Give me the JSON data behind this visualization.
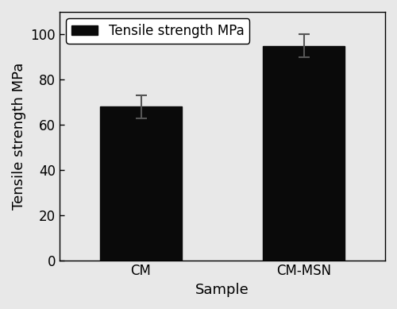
{
  "categories": [
    "CM",
    "CM-MSN"
  ],
  "values": [
    68,
    95
  ],
  "errors": [
    5,
    5
  ],
  "bar_color": "#0a0a0a",
  "bar_width": 0.5,
  "xlabel": "Sample",
  "ylabel": "Tensile strength MPa",
  "ylim": [
    0,
    110
  ],
  "yticks": [
    0,
    20,
    40,
    60,
    80,
    100
  ],
  "legend_label": "Tensile strength MPa",
  "legend_color": "#0a0a0a",
  "background_color": "#e8e8e8",
  "title": "",
  "xlabel_fontsize": 13,
  "ylabel_fontsize": 13,
  "tick_fontsize": 12,
  "legend_fontsize": 12,
  "errorbar_color": "#555555",
  "errorbar_capsize": 5,
  "errorbar_linewidth": 1.5
}
